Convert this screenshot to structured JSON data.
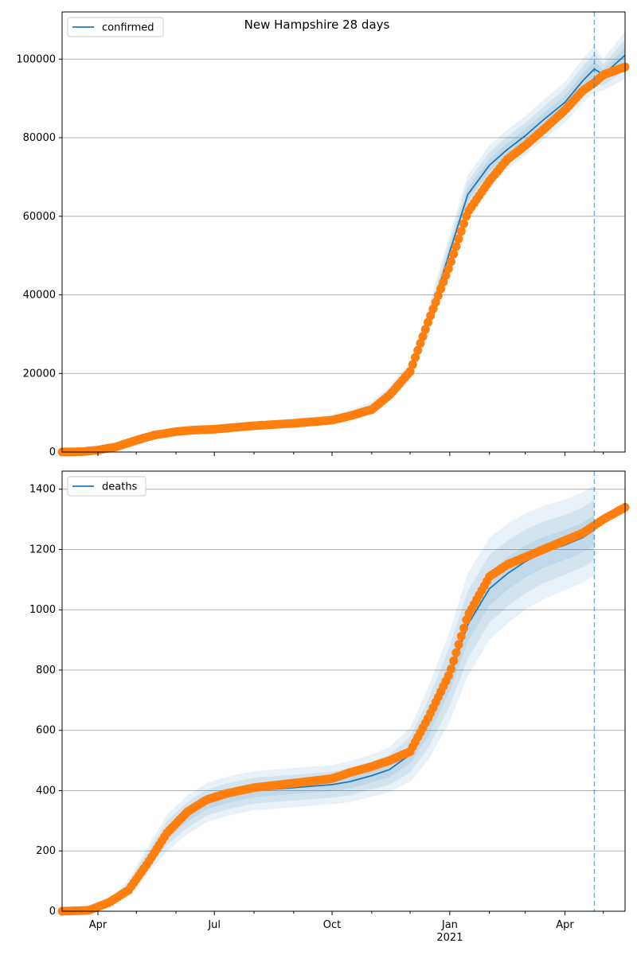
{
  "figure_title": "New Hampshire 28 days",
  "colors": {
    "model_line": "#1f77b4",
    "observed_points": "#ff7f0e",
    "band": "#1f77b4",
    "grid": "#b0b0b0",
    "forecast_divider": "#1f77b4"
  },
  "x_axis": {
    "tick_labels": [
      "Apr",
      "Jul",
      "Oct",
      "Jan",
      "Apr"
    ],
    "tick_dates": [
      "2020-04-01",
      "2020-07-01",
      "2020-10-01",
      "2021-01-01",
      "2021-04-01"
    ],
    "year_label": "2021",
    "range": [
      "2020-03-04",
      "2021-05-18"
    ],
    "forecast_start": "2021-04-24"
  },
  "chart_data": [
    {
      "type": "line",
      "title": "New Hampshire 28 days",
      "legend": [
        "confirmed"
      ],
      "legend_position": "top-left",
      "grid": "horizontal",
      "ylim": [
        0,
        112000
      ],
      "yticks": [
        0,
        20000,
        40000,
        60000,
        80000,
        100000
      ],
      "ytick_labels": [
        "0",
        "20000",
        "40000",
        "60000",
        "80000",
        "100000"
      ],
      "model": {
        "name": "confirmed",
        "x": [
          "2020-03-04",
          "2020-03-15",
          "2020-04-01",
          "2020-04-15",
          "2020-05-01",
          "2020-05-15",
          "2020-06-01",
          "2020-06-15",
          "2020-07-01",
          "2020-08-01",
          "2020-09-01",
          "2020-10-01",
          "2020-10-15",
          "2020-11-01",
          "2020-11-15",
          "2020-12-01",
          "2020-12-15",
          "2021-01-01",
          "2021-01-15",
          "2021-02-01",
          "2021-02-15",
          "2021-03-01",
          "2021-03-15",
          "2021-04-01",
          "2021-04-15",
          "2021-04-24",
          "2021-05-01",
          "2021-05-18"
        ],
        "y": [
          0,
          150,
          600,
          1800,
          3400,
          4600,
          5300,
          5700,
          5900,
          6700,
          7400,
          8400,
          9500,
          11300,
          15000,
          20500,
          33000,
          51000,
          65500,
          73000,
          77000,
          80500,
          84500,
          89000,
          94500,
          97500,
          96000,
          101000
        ],
        "band_inner": [
          0,
          150,
          600,
          1800,
          3400,
          4600,
          5300,
          5700,
          5900,
          6700,
          7400,
          8400,
          9500,
          11300,
          15000,
          20500,
          33000,
          51000,
          65500,
          73000,
          77000,
          80500,
          84500,
          89000,
          94500,
          97500,
          96000,
          101000
        ],
        "band_half_widths": [
          0,
          100,
          300,
          500,
          700,
          800,
          900,
          900,
          1000,
          1000,
          1100,
          1200,
          1300,
          1500,
          1800,
          2500,
          3500,
          4500,
          5000,
          5000,
          5000,
          5000,
          5000,
          5200,
          5600,
          6000,
          4000,
          6000
        ]
      },
      "observed": {
        "x": [
          "2020-03-04",
          "2020-03-20",
          "2020-04-01",
          "2020-04-15",
          "2020-05-01",
          "2020-05-15",
          "2020-06-01",
          "2020-06-15",
          "2020-07-01",
          "2020-08-01",
          "2020-09-01",
          "2020-10-01",
          "2020-10-15",
          "2020-11-01",
          "2020-11-15",
          "2020-12-01",
          "2020-12-15",
          "2021-01-01",
          "2021-01-15",
          "2021-02-01",
          "2021-02-15",
          "2021-03-01",
          "2021-03-15",
          "2021-04-01",
          "2021-04-15",
          "2021-04-24",
          "2021-05-01",
          "2021-05-18"
        ],
        "y": [
          0,
          100,
          500,
          1300,
          3000,
          4300,
          5200,
          5600,
          5800,
          6700,
          7300,
          8100,
          9200,
          10800,
          14500,
          20500,
          33000,
          47500,
          61000,
          69000,
          74500,
          78000,
          82000,
          87000,
          92000,
          94000,
          96000,
          98000
        ]
      }
    },
    {
      "type": "line",
      "legend": [
        "deaths"
      ],
      "legend_position": "top-left",
      "grid": "horizontal",
      "ylim": [
        0,
        1460
      ],
      "yticks": [
        0,
        200,
        400,
        600,
        800,
        1000,
        1200,
        1400
      ],
      "ytick_labels": [
        "0",
        "200",
        "400",
        "600",
        "800",
        "1000",
        "1200",
        "1400"
      ],
      "model": {
        "name": "deaths",
        "x": [
          "2020-03-04",
          "2020-03-25",
          "2020-04-10",
          "2020-04-25",
          "2020-05-10",
          "2020-05-25",
          "2020-06-10",
          "2020-06-25",
          "2020-07-10",
          "2020-08-01",
          "2020-09-01",
          "2020-10-01",
          "2020-10-15",
          "2020-11-01",
          "2020-11-15",
          "2020-12-01",
          "2020-12-15",
          "2021-01-01",
          "2021-01-15",
          "2021-02-01",
          "2021-02-15",
          "2021-03-01",
          "2021-03-15",
          "2021-04-01",
          "2021-04-15",
          "2021-04-24"
        ],
        "y": [
          0,
          5,
          30,
          80,
          170,
          260,
          320,
          360,
          380,
          400,
          410,
          420,
          430,
          450,
          470,
          520,
          620,
          780,
          950,
          1070,
          1120,
          1160,
          1190,
          1215,
          1240,
          1265
        ],
        "band_half_widths": [
          0,
          3,
          10,
          25,
          45,
          60,
          65,
          65,
          65,
          65,
          65,
          65,
          68,
          70,
          75,
          90,
          120,
          150,
          170,
          170,
          165,
          160,
          155,
          150,
          150,
          150
        ]
      },
      "observed": {
        "x": [
          "2020-03-04",
          "2020-03-25",
          "2020-04-10",
          "2020-04-25",
          "2020-05-10",
          "2020-05-25",
          "2020-06-10",
          "2020-06-25",
          "2020-07-10",
          "2020-08-01",
          "2020-09-01",
          "2020-10-01",
          "2020-10-15",
          "2020-11-01",
          "2020-11-15",
          "2020-12-01",
          "2020-12-15",
          "2021-01-01",
          "2021-01-15",
          "2021-02-01",
          "2021-02-15",
          "2021-03-01",
          "2021-03-15",
          "2021-04-01",
          "2021-04-15",
          "2021-04-24",
          "2021-05-01",
          "2021-05-18"
        ],
        "y": [
          0,
          3,
          30,
          70,
          160,
          260,
          330,
          370,
          390,
          410,
          425,
          440,
          460,
          480,
          500,
          530,
          640,
          790,
          980,
          1110,
          1150,
          1175,
          1200,
          1230,
          1255,
          1280,
          1300,
          1340
        ]
      }
    }
  ]
}
